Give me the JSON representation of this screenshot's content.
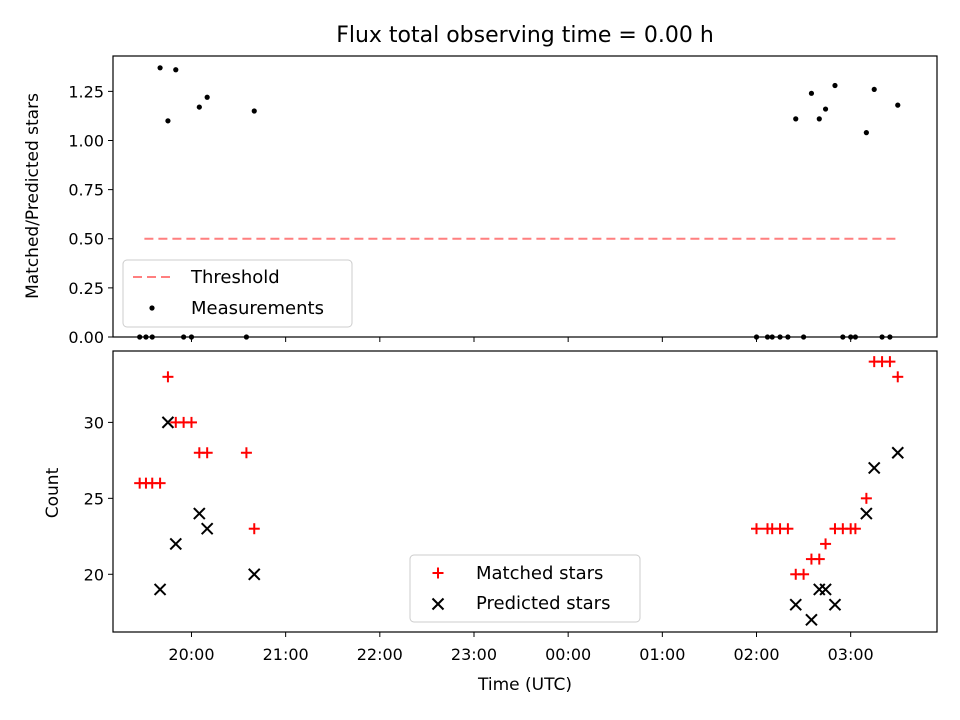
{
  "chart_data": [
    {
      "type": "scatter",
      "title": "Flux total observing time = 0.00 h",
      "xlabel": "",
      "ylabel": "Matched/Predicted stars",
      "ylim": [
        0,
        1.43
      ],
      "yticks": [
        "0.00",
        "0.25",
        "0.50",
        "0.75",
        "1.00",
        "1.25"
      ],
      "ytick_values": [
        0,
        0.25,
        0.5,
        0.75,
        1.0,
        1.25
      ],
      "legend_position": "lower-left",
      "grid": false,
      "threshold": {
        "name": "Threshold",
        "value": 0.5,
        "x_start": "19:30",
        "x_end": "03:30",
        "color": "#ff7f7f",
        "style": "dashed"
      },
      "series": [
        {
          "name": "Measurements",
          "marker": "dot",
          "color": "#000000",
          "points": [
            {
              "x": "19:27",
              "y": 0
            },
            {
              "x": "19:31",
              "y": 0
            },
            {
              "x": "19:35",
              "y": 0
            },
            {
              "x": "19:40",
              "y": 1.37
            },
            {
              "x": "19:45",
              "y": 1.1
            },
            {
              "x": "19:50",
              "y": 1.36
            },
            {
              "x": "19:55",
              "y": 0
            },
            {
              "x": "20:00",
              "y": 0
            },
            {
              "x": "20:05",
              "y": 1.17
            },
            {
              "x": "20:10",
              "y": 1.22
            },
            {
              "x": "20:35",
              "y": 0
            },
            {
              "x": "20:40",
              "y": 1.15
            },
            {
              "x": "02:00",
              "y": 0
            },
            {
              "x": "02:07",
              "y": 0
            },
            {
              "x": "02:10",
              "y": 0
            },
            {
              "x": "02:15",
              "y": 0
            },
            {
              "x": "02:20",
              "y": 0
            },
            {
              "x": "02:25",
              "y": 1.11
            },
            {
              "x": "02:30",
              "y": 0
            },
            {
              "x": "02:35",
              "y": 1.24
            },
            {
              "x": "02:40",
              "y": 1.11
            },
            {
              "x": "02:44",
              "y": 1.16
            },
            {
              "x": "02:50",
              "y": 1.28
            },
            {
              "x": "02:55",
              "y": 0
            },
            {
              "x": "03:00",
              "y": 0
            },
            {
              "x": "03:03",
              "y": 0
            },
            {
              "x": "03:10",
              "y": 1.04
            },
            {
              "x": "03:15",
              "y": 1.26
            },
            {
              "x": "03:20",
              "y": 0
            },
            {
              "x": "03:25",
              "y": 0
            },
            {
              "x": "03:30",
              "y": 1.18
            }
          ]
        }
      ]
    },
    {
      "type": "scatter",
      "title": "",
      "xlabel": "Time (UTC)",
      "ylabel": "Count",
      "ylim": [
        16.2,
        34.7
      ],
      "yticks": [
        "20",
        "25",
        "30"
      ],
      "ytick_values": [
        20,
        25,
        30
      ],
      "x_domain": [
        "19:10",
        "03:55"
      ],
      "xticks": [
        "20:00",
        "21:00",
        "22:00",
        "23:00",
        "00:00",
        "01:00",
        "02:00",
        "03:00"
      ],
      "legend_position": "lower-center",
      "grid": false,
      "series": [
        {
          "name": "Matched stars",
          "marker": "plus",
          "color": "#ff0000",
          "points": [
            {
              "x": "19:27",
              "y": 26
            },
            {
              "x": "19:31",
              "y": 26
            },
            {
              "x": "19:35",
              "y": 26
            },
            {
              "x": "19:40",
              "y": 26
            },
            {
              "x": "19:45",
              "y": 33
            },
            {
              "x": "19:50",
              "y": 30
            },
            {
              "x": "19:55",
              "y": 30
            },
            {
              "x": "20:00",
              "y": 30
            },
            {
              "x": "20:05",
              "y": 28
            },
            {
              "x": "20:10",
              "y": 28
            },
            {
              "x": "20:35",
              "y": 28
            },
            {
              "x": "20:40",
              "y": 23
            },
            {
              "x": "02:00",
              "y": 23
            },
            {
              "x": "02:07",
              "y": 23
            },
            {
              "x": "02:10",
              "y": 23
            },
            {
              "x": "02:15",
              "y": 23
            },
            {
              "x": "02:20",
              "y": 23
            },
            {
              "x": "02:25",
              "y": 20
            },
            {
              "x": "02:30",
              "y": 20
            },
            {
              "x": "02:35",
              "y": 21
            },
            {
              "x": "02:40",
              "y": 21
            },
            {
              "x": "02:44",
              "y": 22
            },
            {
              "x": "02:50",
              "y": 23
            },
            {
              "x": "02:55",
              "y": 23
            },
            {
              "x": "03:00",
              "y": 23
            },
            {
              "x": "03:03",
              "y": 23
            },
            {
              "x": "03:10",
              "y": 25
            },
            {
              "x": "03:15",
              "y": 34
            },
            {
              "x": "03:20",
              "y": 34
            },
            {
              "x": "03:25",
              "y": 34
            },
            {
              "x": "03:30",
              "y": 33
            }
          ]
        },
        {
          "name": "Predicted stars",
          "marker": "x",
          "color": "#000000",
          "points": [
            {
              "x": "19:40",
              "y": 19
            },
            {
              "x": "19:45",
              "y": 30
            },
            {
              "x": "19:50",
              "y": 22
            },
            {
              "x": "20:05",
              "y": 24
            },
            {
              "x": "20:10",
              "y": 23
            },
            {
              "x": "20:40",
              "y": 20
            },
            {
              "x": "02:25",
              "y": 18
            },
            {
              "x": "02:35",
              "y": 17
            },
            {
              "x": "02:40",
              "y": 19
            },
            {
              "x": "02:44",
              "y": 19
            },
            {
              "x": "02:50",
              "y": 18
            },
            {
              "x": "03:10",
              "y": 24
            },
            {
              "x": "03:15",
              "y": 27
            },
            {
              "x": "03:30",
              "y": 28
            }
          ]
        }
      ]
    }
  ]
}
